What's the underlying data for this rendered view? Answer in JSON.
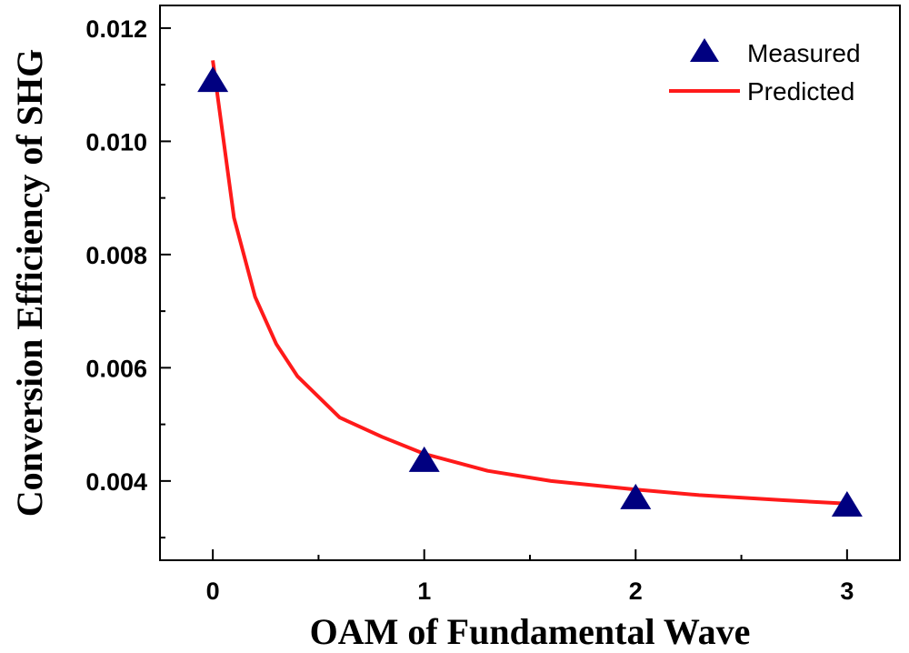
{
  "chart_data": {
    "type": "scatter",
    "title": "",
    "xlabel": "OAM of Fundamental Wave",
    "ylabel": "Conversion Efficiency of SHG",
    "xlim": [
      -0.25,
      3.25
    ],
    "ylim": [
      0.0026,
      0.0124
    ],
    "x_ticks": [
      {
        "value": 0,
        "label": "0"
      },
      {
        "value": 1,
        "label": "1"
      },
      {
        "value": 2,
        "label": "2"
      },
      {
        "value": 3,
        "label": "3"
      }
    ],
    "y_ticks": [
      {
        "value": 0.004,
        "label": "0.004"
      },
      {
        "value": 0.006,
        "label": "0.006"
      },
      {
        "value": 0.008,
        "label": "0.008"
      },
      {
        "value": 0.01,
        "label": "0.010"
      },
      {
        "value": 0.012,
        "label": "0.012"
      }
    ],
    "x_minor_ticks": [
      0.5,
      1.5,
      2.5
    ],
    "y_minor_ticks": [
      0.003,
      0.005,
      0.007,
      0.009,
      0.011
    ],
    "grid": false,
    "legend_position": "top-right",
    "series": [
      {
        "name": "Measured",
        "kind": "scatter",
        "marker": "triangle",
        "color": "#000080",
        "x": [
          0,
          1,
          2,
          3
        ],
        "y": [
          0.01108,
          0.00437,
          0.00371,
          0.00358
        ]
      },
      {
        "name": "Predicted",
        "kind": "line",
        "color": "#ff1a1a",
        "x": [
          0,
          0.1,
          0.2,
          0.3,
          0.4,
          0.6,
          0.8,
          1.0,
          1.3,
          1.6,
          2.0,
          2.3,
          2.7,
          3.0
        ],
        "y": [
          0.01143,
          0.00865,
          0.00725,
          0.00642,
          0.00585,
          0.00512,
          0.00478,
          0.00448,
          0.00418,
          0.004,
          0.00385,
          0.00375,
          0.00366,
          0.0036
        ]
      }
    ]
  }
}
